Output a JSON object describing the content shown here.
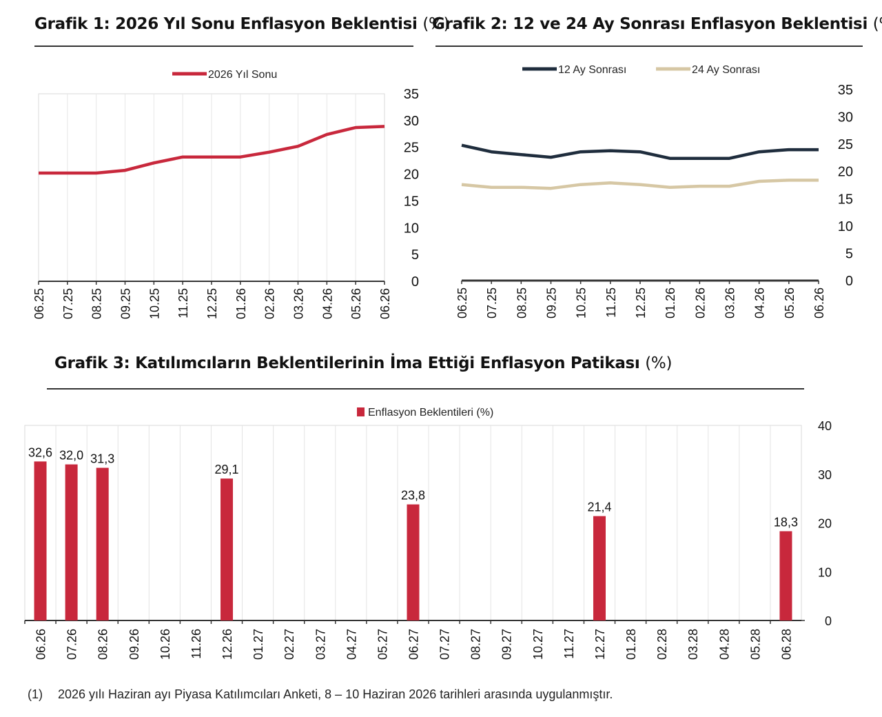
{
  "charts": {
    "g1": {
      "title_main": "Grafik 1: 2026 Yıl Sonu Enflasyon Beklentisi",
      "title_unit": "(%)"
    },
    "g2": {
      "title_main": "Grafik 2: 12 ve 24 Ay Sonrası Enflasyon Beklentisi",
      "title_unit": "(%)"
    },
    "g3": {
      "title_main": "Grafik 3: Katılımcıların Beklentilerinin İma Ettiği Enflasyon Patikası",
      "title_unit": "(%)"
    }
  },
  "footnote": {
    "number": "(1)",
    "text": "2026 yılı Haziran ayı Piyasa Katılımcıları Anketi, 8 – 10 Haziran 2026 tarihleri arasında uygulanmıştır."
  },
  "chart_data": [
    {
      "id": "g1",
      "type": "line",
      "categories": [
        "06.25",
        "07.25",
        "08.25",
        "09.25",
        "10.25",
        "11.25",
        "12.25",
        "01.26",
        "02.26",
        "03.26",
        "04.26",
        "05.26",
        "06.26"
      ],
      "series": [
        {
          "name": "2026 Yıl Sonu",
          "color": "#c8283c",
          "values": [
            20.2,
            20.2,
            20.2,
            20.7,
            22.1,
            23.2,
            23.2,
            23.2,
            24.1,
            25.2,
            27.4,
            28.7,
            28.9
          ]
        }
      ],
      "ylim": [
        0,
        35
      ],
      "yticks": [
        0,
        5,
        10,
        15,
        20,
        25,
        30,
        35
      ],
      "y_axis_side": "right",
      "grid": true,
      "legend": "top-center"
    },
    {
      "id": "g2",
      "type": "line",
      "categories": [
        "06.25",
        "07.25",
        "08.25",
        "09.25",
        "10.25",
        "11.25",
        "12.25",
        "01.26",
        "02.26",
        "03.26",
        "04.26",
        "05.26",
        "06.26"
      ],
      "series": [
        {
          "name": "12 Ay Sonrası",
          "color": "#1f2d3d",
          "values": [
            24.8,
            23.6,
            23.1,
            22.6,
            23.6,
            23.8,
            23.6,
            22.4,
            22.4,
            22.4,
            23.6,
            24.0,
            24.0
          ]
        },
        {
          "name": "24 Ay Sonrası",
          "color": "#d6c7a4",
          "values": [
            17.6,
            17.1,
            17.1,
            16.9,
            17.6,
            17.9,
            17.6,
            17.1,
            17.3,
            17.3,
            18.2,
            18.4,
            18.4
          ]
        }
      ],
      "ylim": [
        0,
        35
      ],
      "yticks": [
        0,
        5,
        10,
        15,
        20,
        25,
        30,
        35
      ],
      "y_axis_side": "right",
      "grid": false,
      "legend": "top-center"
    },
    {
      "id": "g3",
      "type": "bar",
      "categories": [
        "06.26",
        "07.26",
        "08.26",
        "09.26",
        "10.26",
        "11.26",
        "12.26",
        "01.27",
        "02.27",
        "03.27",
        "04.27",
        "05.27",
        "06.27",
        "07.27",
        "08.27",
        "09.27",
        "10.27",
        "11.27",
        "12.27",
        "01.28",
        "02.28",
        "03.28",
        "04.28",
        "05.28",
        "06.28"
      ],
      "series": [
        {
          "name": "Enflasyon Beklentileri (%)",
          "color": "#c8283c",
          "values": [
            32.6,
            32.0,
            31.3,
            null,
            null,
            null,
            29.1,
            null,
            null,
            null,
            null,
            null,
            23.8,
            null,
            null,
            null,
            null,
            null,
            21.4,
            null,
            null,
            null,
            null,
            null,
            18.3
          ],
          "labels": [
            "32,6",
            "32,0",
            "31,3",
            "",
            "",
            "",
            "29,1",
            "",
            "",
            "",
            "",
            "",
            "23,8",
            "",
            "",
            "",
            "",
            "",
            "21,4",
            "",
            "",
            "",
            "",
            "",
            "18,3"
          ]
        }
      ],
      "ylim": [
        0,
        40
      ],
      "yticks": [
        0,
        10,
        20,
        30,
        40
      ],
      "y_axis_side": "right",
      "grid": true,
      "legend": "top-center"
    }
  ]
}
